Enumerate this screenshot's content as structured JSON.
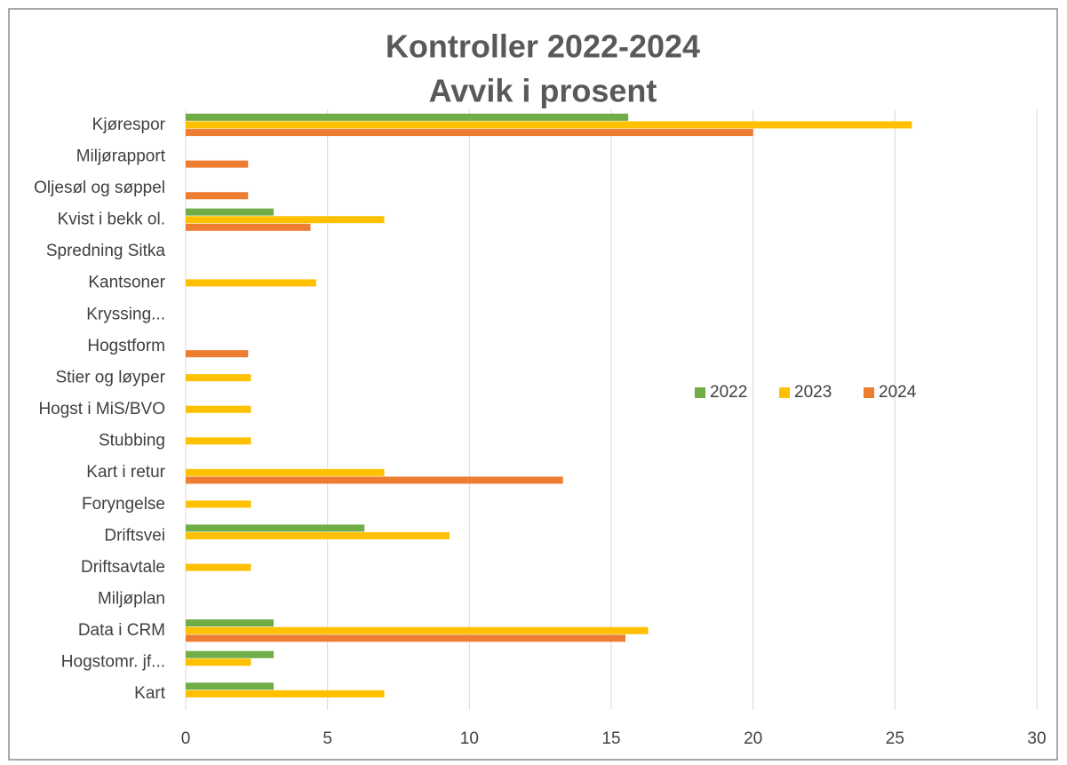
{
  "chart_data": {
    "type": "barh",
    "title": "Kontroller 2022-2024",
    "subtitle": "Avvik i prosent",
    "categories": [
      "Kjørespor",
      "Miljørapport",
      "Oljesøl og søppel",
      "Kvist i bekk ol.",
      "Spredning Sitka",
      "Kantsoner",
      "Kryssing...",
      "Hogstform",
      "Stier og løyper",
      "Hogst i MiS/BVO",
      "Stubbing",
      "Kart i retur",
      "Foryngelse",
      "Driftsvei",
      "Driftsavtale",
      "Miljøplan",
      "Data i CRM",
      "Hogstomr. jf...",
      "Kart"
    ],
    "series": [
      {
        "name": "2022",
        "color": "#70ad47",
        "values": [
          15.6,
          null,
          null,
          3.1,
          null,
          null,
          null,
          null,
          null,
          null,
          null,
          null,
          null,
          6.3,
          null,
          null,
          3.1,
          3.1,
          3.1
        ]
      },
      {
        "name": "2023",
        "color": "#ffc000",
        "values": [
          25.6,
          null,
          null,
          7.0,
          null,
          4.6,
          null,
          null,
          2.3,
          2.3,
          2.3,
          7.0,
          2.3,
          9.3,
          2.3,
          null,
          16.3,
          2.3,
          7.0
        ]
      },
      {
        "name": "2024",
        "color": "#ed7d31",
        "values": [
          20.0,
          2.2,
          2.2,
          4.4,
          null,
          null,
          null,
          2.2,
          null,
          null,
          null,
          13.3,
          null,
          null,
          null,
          null,
          15.5,
          null,
          null
        ]
      }
    ],
    "xlim": [
      0,
      30
    ],
    "xticks": [
      0,
      5,
      10,
      15,
      20,
      25,
      30
    ],
    "grid": true,
    "legend": "right"
  }
}
